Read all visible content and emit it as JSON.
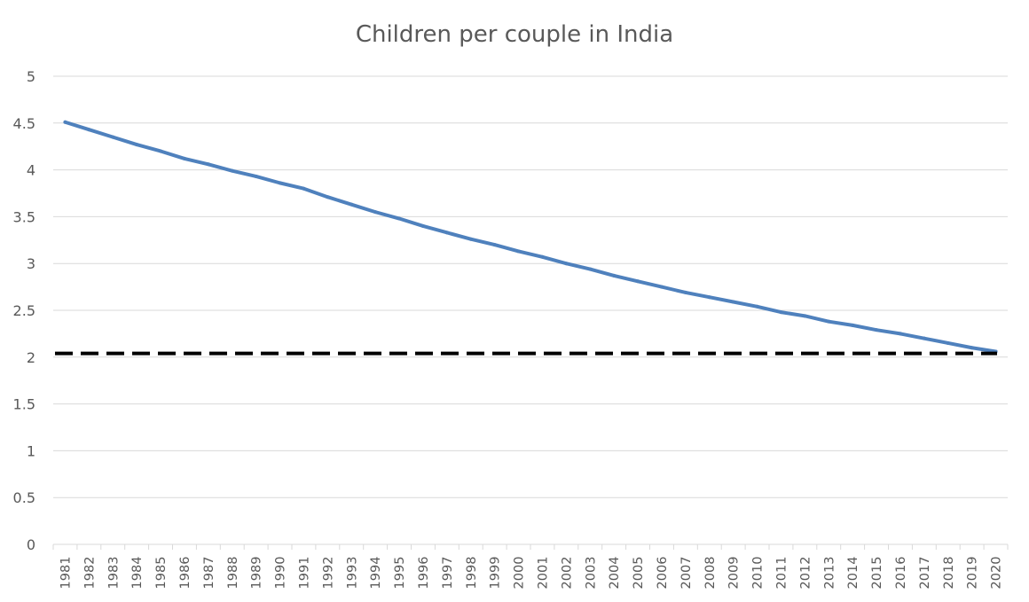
{
  "chart_data": {
    "type": "line",
    "title": "Children per couple in India",
    "xlabel": "",
    "ylabel": "",
    "ylim": [
      0,
      5
    ],
    "y_ticks": [
      "0",
      "0.5",
      "1",
      "1.5",
      "2",
      "2.5",
      "3",
      "3.5",
      "4",
      "4.5",
      "5"
    ],
    "grid": true,
    "legend": "none",
    "x": [
      "1981",
      "1982",
      "1983",
      "1984",
      "1985",
      "1986",
      "1987",
      "1988",
      "1989",
      "1990",
      "1991",
      "1992",
      "1993",
      "1994",
      "1995",
      "1996",
      "1997",
      "1998",
      "1999",
      "2000",
      "2001",
      "2002",
      "2003",
      "2004",
      "2005",
      "2006",
      "2007",
      "2008",
      "2009",
      "2010",
      "2011",
      "2012",
      "2013",
      "2014",
      "2015",
      "2016",
      "2017",
      "2018",
      "2019",
      "2020"
    ],
    "series": [
      {
        "values": [
          4.51,
          4.43,
          4.35,
          4.27,
          4.2,
          4.12,
          4.06,
          3.99,
          3.93,
          3.86,
          3.8,
          3.71,
          3.63,
          3.55,
          3.48,
          3.4,
          3.33,
          3.26,
          3.2,
          3.13,
          3.07,
          3.0,
          2.94,
          2.87,
          2.81,
          2.75,
          2.69,
          2.64,
          2.59,
          2.54,
          2.48,
          2.44,
          2.38,
          2.34,
          2.29,
          2.25,
          2.2,
          2.15,
          2.1,
          2.06
        ],
        "color": "#4f81bd"
      }
    ],
    "reference_lines": [
      {
        "y": 2.04,
        "style": "dashed",
        "color": "#000000"
      }
    ]
  }
}
